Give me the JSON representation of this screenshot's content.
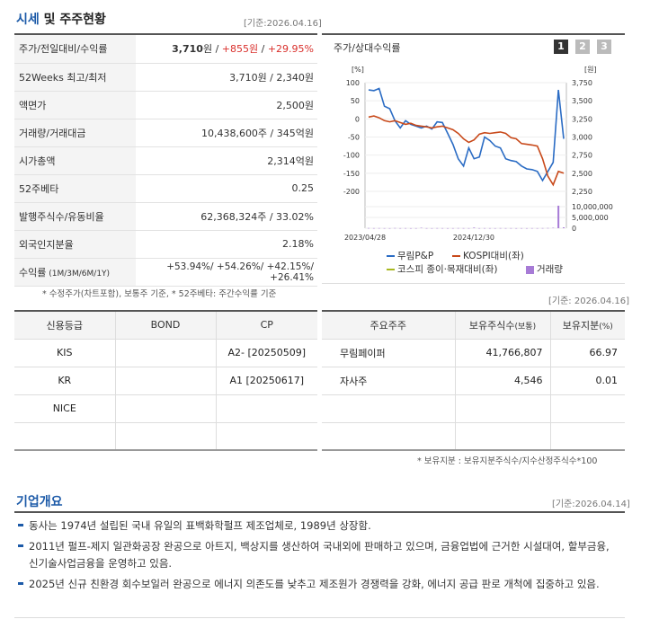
{
  "quote": {
    "title_main": "시세",
    "title_rest": " 및 주주현황",
    "date": "[기준:2026.04.16]",
    "rows": [
      {
        "label": "주가/전일대비/수익률",
        "v1": "3,710",
        "u1": "원",
        "sep1": " / ",
        "v2": "+855",
        "u2": "원",
        "sep2": " / ",
        "v3": "+29.95%"
      },
      {
        "label": "52Weeks 최고/최저",
        "value": "3,710원 / 2,340원"
      },
      {
        "label": "액면가",
        "value": "2,500원"
      },
      {
        "label": "거래량/거래대금",
        "value": "10,438,600주 / 345억원"
      },
      {
        "label": "시가총액",
        "value": "2,314억원"
      },
      {
        "label": "52주베타",
        "value": "0.25"
      },
      {
        "label": "발행주식수/유동비율",
        "value": "62,368,324주 / 33.02%"
      },
      {
        "label": "외국인지분율",
        "value": "2.18%"
      }
    ],
    "return_label": "수익률",
    "return_sub": " (1M/3M/6M/1Y)",
    "return_value": "+53.94%/ +54.26%/ +42.15%/ +26.41%",
    "footnote": "* 수정주가(차트포함), 보통주 기준, * 52주베타: 주간수익률 기준"
  },
  "chart": {
    "title": "주가/상대수익률",
    "tabs": [
      "1",
      "2",
      "3"
    ],
    "left_unit": "[%]",
    "right_unit": "[원]",
    "colors": {
      "stock": "#2b6cc4",
      "kospi": "#c8491a",
      "sector": "#a8b820",
      "volume": "#a77bd6"
    }
  },
  "chart_data": {
    "type": "line",
    "x_start": "2023/04/28",
    "x_end": "2026/04/16",
    "x_ticks": [
      "2023/04/28",
      "2024/12/30"
    ],
    "y_left": {
      "ticks": [
        "100",
        "50",
        "0",
        "-50",
        "-100",
        "-150",
        "-200"
      ],
      "range": [
        -200,
        100
      ]
    },
    "y_right": {
      "ticks": [
        "3,750",
        "3,500",
        "3,250",
        "3,000",
        "2,750",
        "2,500",
        "2,250"
      ],
      "range": [
        2250,
        3750
      ]
    },
    "y_volume": {
      "ticks": [
        "10,000,000",
        "5,000,000",
        "0"
      ],
      "range": [
        0,
        10000000
      ]
    },
    "series": [
      {
        "name": "무림P&P",
        "axis": "left",
        "values": [
          80,
          78,
          84,
          35,
          28,
          -5,
          -25,
          -5,
          -15,
          -20,
          -25,
          -20,
          -28,
          -8,
          -10,
          -40,
          -70,
          -110,
          -130,
          -80,
          -110,
          -105,
          -50,
          -60,
          -75,
          -80,
          -110,
          -115,
          -118,
          -130,
          -138,
          -140,
          -145,
          -170,
          -145,
          -120,
          80,
          -55
        ]
      },
      {
        "name": "KOSPI대비(좌)",
        "axis": "left",
        "values": [
          5,
          8,
          3,
          -5,
          -8,
          -5,
          -10,
          -15,
          -12,
          -18,
          -20,
          -22,
          -25,
          -22,
          -20,
          -25,
          -30,
          -40,
          -55,
          -65,
          -58,
          -42,
          -38,
          -40,
          -38,
          -36,
          -40,
          -52,
          -55,
          -68,
          -70,
          -72,
          -75,
          -110,
          -158,
          -182,
          -145,
          -150
        ]
      },
      {
        "name": "코스피 종이·목재대비(좌)",
        "axis": "left",
        "values": []
      },
      {
        "name": "거래량",
        "axis": "volume",
        "type": "bar",
        "values": [
          80000,
          50000,
          60000,
          40000,
          30000,
          90000,
          40000,
          50000,
          30000,
          40000,
          200000,
          40000,
          30000,
          60000,
          50000,
          30000,
          40000,
          70000,
          50000,
          40000,
          300000,
          40000,
          50000,
          40000,
          30000,
          60000,
          40000,
          50000,
          30000,
          40000,
          30000,
          50000,
          40000,
          60000,
          100000,
          200000,
          10438600,
          400000
        ]
      }
    ]
  },
  "credit": {
    "headers": [
      "신용등급",
      "BOND",
      "CP"
    ],
    "rows": [
      {
        "agency": "KIS",
        "bond": "",
        "cp": "A2-  [20250509]"
      },
      {
        "agency": "KR",
        "bond": "",
        "cp": "A1  [20250617]"
      },
      {
        "agency": "NICE",
        "bond": "",
        "cp": ""
      },
      {
        "agency": "",
        "bond": "",
        "cp": ""
      }
    ]
  },
  "holders": {
    "date": "[기준: 2026.04.16]",
    "headers": [
      "주요주주",
      "보유주식수",
      "(보통)",
      "보유지분",
      "(%)"
    ],
    "rows": [
      {
        "name": "무림페이퍼",
        "shares": "41,766,807",
        "pct": "66.97"
      },
      {
        "name": "자사주",
        "shares": "4,546",
        "pct": "0.01"
      },
      {
        "name": "",
        "shares": "",
        "pct": ""
      },
      {
        "name": "",
        "shares": "",
        "pct": ""
      }
    ],
    "footnote": "* 보유지분 : 보유지분주식수/지수산정주식수*100"
  },
  "overview": {
    "title": "기업개요",
    "date": "[기준:2026.04.14]",
    "bullets": [
      "동사는 1974년 설립된 국내 유일의 표백화학펄프 제조업체로, 1989년 상장함.",
      "2011년 펄프-제지 일관화공장 완공으로 아트지, 백상지를 생산하여 국내외에 판매하고 있으며, 금융업법에 근거한 시설대여, 할부금융, 신기술사업금융을 운영하고 있음.",
      "2025년 신규 친환경 회수보일러 완공으로 에너지 의존도를 낮추고 제조원가 경쟁력을 강화, 에너지 공급 판로 개척에 집중하고 있음."
    ]
  }
}
